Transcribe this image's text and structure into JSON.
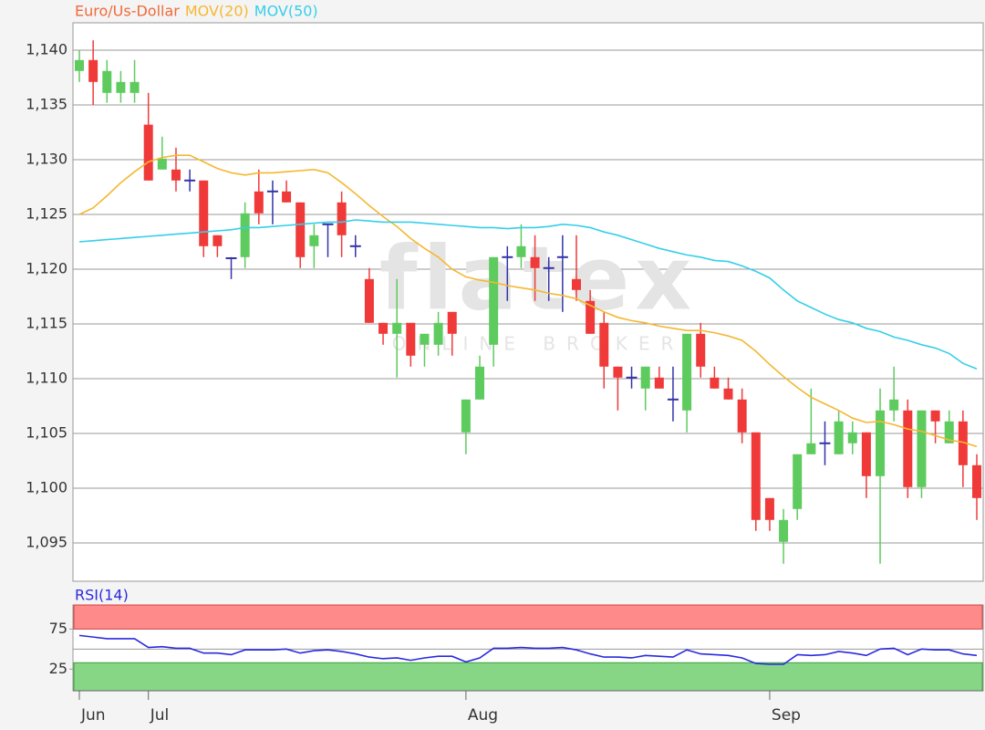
{
  "chart_data": [
    {
      "type": "candlestick",
      "name": "Euro/Us-Dollar",
      "up_color": "#5ecb5e",
      "down_color": "#f03a3a",
      "flat_color": "#3333aa",
      "name_color": "#f06a3a",
      "open": [
        1.1381,
        1.1391,
        1.1361,
        1.1361,
        1.1361,
        1.1332,
        1.1291,
        1.1291,
        1.1281,
        1.1281,
        1.1231,
        1.121,
        1.1211,
        1.1271,
        1.1271,
        1.1271,
        1.1261,
        1.1221,
        1.1241,
        1.1261,
        1.1221,
        1.1191,
        1.1151,
        1.1141,
        1.1151,
        1.1131,
        1.1131,
        1.1161,
        1.1051,
        1.1081,
        1.1131,
        1.1211,
        1.1211,
        1.1211,
        1.1201,
        1.1211,
        1.1191,
        1.1171,
        1.1151,
        1.1111,
        1.1101,
        1.1091,
        1.1101,
        1.1081,
        1.1071,
        1.1141,
        1.1101,
        1.1091,
        1.1081,
        1.1051,
        1.0991,
        1.0951,
        1.0981,
        1.1031,
        1.1041,
        1.1031,
        1.1041,
        1.1051,
        1.1011,
        1.1071,
        1.1071,
        1.1001,
        1.1071,
        1.1041,
        1.1061,
        1.1021
      ],
      "high": [
        1.14,
        1.1409,
        1.1391,
        1.1381,
        1.1391,
        1.1361,
        1.1321,
        1.1311,
        1.1291,
        1.1281,
        1.1231,
        1.1211,
        1.1261,
        1.1291,
        1.1281,
        1.1281,
        1.1261,
        1.1241,
        1.1241,
        1.1271,
        1.1231,
        1.1201,
        1.1151,
        1.1191,
        1.1151,
        1.1141,
        1.1161,
        1.1161,
        1.1081,
        1.1121,
        1.1211,
        1.1221,
        1.1241,
        1.1231,
        1.1211,
        1.1231,
        1.1231,
        1.1181,
        1.1161,
        1.1111,
        1.1111,
        1.1111,
        1.1111,
        1.1111,
        1.1141,
        1.1151,
        1.1111,
        1.1101,
        1.1091,
        1.1051,
        1.0991,
        1.0981,
        1.1031,
        1.1091,
        1.1061,
        1.1071,
        1.1061,
        1.1051,
        1.1091,
        1.1111,
        1.1081,
        1.1071,
        1.1071,
        1.1071,
        1.1071,
        1.1031
      ],
      "low": [
        1.1371,
        1.135,
        1.1352,
        1.1352,
        1.1352,
        1.1281,
        1.1291,
        1.1271,
        1.1271,
        1.1211,
        1.1211,
        1.1191,
        1.1201,
        1.1241,
        1.1241,
        1.1261,
        1.1201,
        1.1201,
        1.1211,
        1.1211,
        1.1211,
        1.1151,
        1.1131,
        1.1101,
        1.1111,
        1.1111,
        1.1121,
        1.1121,
        1.1031,
        1.1081,
        1.1111,
        1.1171,
        1.1201,
        1.1171,
        1.1171,
        1.1161,
        1.1171,
        1.1141,
        1.1091,
        1.1071,
        1.1091,
        1.1071,
        1.1091,
        1.1061,
        1.1051,
        1.1101,
        1.1091,
        1.1081,
        1.1041,
        1.0961,
        1.0961,
        1.0931,
        1.0971,
        1.1031,
        1.1021,
        1.1031,
        1.1031,
        1.0991,
        1.0931,
        1.1061,
        1.0991,
        1.0991,
        1.1041,
        1.1041,
        1.1001,
        1.0971
      ],
      "close": [
        1.1391,
        1.1371,
        1.1381,
        1.1371,
        1.1371,
        1.1281,
        1.1301,
        1.1281,
        1.1281,
        1.1221,
        1.1221,
        1.121,
        1.1251,
        1.1251,
        1.1271,
        1.1261,
        1.1211,
        1.1231,
        1.1241,
        1.1231,
        1.1221,
        1.1151,
        1.1141,
        1.1151,
        1.1121,
        1.1141,
        1.1151,
        1.1141,
        1.1081,
        1.1111,
        1.1211,
        1.1211,
        1.1221,
        1.1201,
        1.1201,
        1.1211,
        1.1181,
        1.1141,
        1.1111,
        1.1101,
        1.1101,
        1.1111,
        1.1091,
        1.1081,
        1.1141,
        1.1111,
        1.1091,
        1.1081,
        1.1051,
        1.0971,
        1.0971,
        1.0971,
        1.1031,
        1.1041,
        1.1041,
        1.1061,
        1.1051,
        1.1011,
        1.1071,
        1.1081,
        1.1001,
        1.1071,
        1.1061,
        1.1061,
        1.1021,
        1.0991
      ],
      "series": [
        {
          "name": "MOV(20)",
          "color": "#f5b731",
          "values": [
            1.125,
            1.1256,
            1.1267,
            1.1279,
            1.1289,
            1.1298,
            1.1302,
            1.1304,
            1.1304,
            1.1298,
            1.1292,
            1.1288,
            1.1286,
            1.1288,
            1.1288,
            1.1289,
            1.129,
            1.1291,
            1.1288,
            1.1279,
            1.1269,
            1.1258,
            1.1248,
            1.1239,
            1.1228,
            1.1219,
            1.1211,
            1.12,
            1.1193,
            1.119,
            1.1188,
            1.1185,
            1.1183,
            1.1181,
            1.1178,
            1.1176,
            1.1173,
            1.1167,
            1.1161,
            1.1156,
            1.1153,
            1.1151,
            1.1148,
            1.1146,
            1.1144,
            1.1144,
            1.1142,
            1.1139,
            1.1135,
            1.1125,
            1.1113,
            1.1102,
            1.1092,
            1.1083,
            1.1077,
            1.1071,
            1.1064,
            1.106,
            1.1061,
            1.1058,
            1.1054,
            1.1052,
            1.1048,
            1.1044,
            1.1042,
            1.1038
          ]
        },
        {
          "name": "MOV(50)",
          "color": "#35cfe8",
          "values": [
            1.1225,
            1.1226,
            1.1227,
            1.1228,
            1.1229,
            1.123,
            1.1231,
            1.1232,
            1.1233,
            1.1234,
            1.1235,
            1.1236,
            1.1238,
            1.1238,
            1.1239,
            1.124,
            1.1241,
            1.1242,
            1.1243,
            1.1243,
            1.1245,
            1.1244,
            1.1243,
            1.1243,
            1.1243,
            1.1242,
            1.1241,
            1.124,
            1.1239,
            1.1238,
            1.1238,
            1.1237,
            1.1238,
            1.1238,
            1.1239,
            1.1241,
            1.124,
            1.1238,
            1.1234,
            1.1231,
            1.1227,
            1.1223,
            1.1219,
            1.1216,
            1.1213,
            1.1211,
            1.1208,
            1.1207,
            1.1203,
            1.1198,
            1.1192,
            1.1181,
            1.1171,
            1.1165,
            1.1159,
            1.1154,
            1.1151,
            1.1146,
            1.1143,
            1.1138,
            1.1135,
            1.1131,
            1.1128,
            1.1123,
            1.1114,
            1.1109
          ]
        }
      ],
      "ylim": [
        1.0915,
        1.1425
      ],
      "yticks": [
        {
          "value": 1.095,
          "label": "1,095"
        },
        {
          "value": 1.1,
          "label": "1,100"
        },
        {
          "value": 1.105,
          "label": "1,105"
        },
        {
          "value": 1.11,
          "label": "1,110"
        },
        {
          "value": 1.115,
          "label": "1,115"
        },
        {
          "value": 1.12,
          "label": "1,120"
        },
        {
          "value": 1.125,
          "label": "1,125"
        },
        {
          "value": 1.13,
          "label": "1,130"
        },
        {
          "value": 1.135,
          "label": "1,135"
        },
        {
          "value": 1.14,
          "label": "1,140"
        }
      ],
      "grid": true,
      "watermark": {
        "logo": "flatex",
        "tagline": "ONLINE BROKER"
      }
    },
    {
      "type": "line",
      "series": [
        {
          "name": "RSI(14)",
          "color": "#2a2ae0",
          "values": [
            67,
            65,
            63,
            63,
            63,
            52,
            53,
            51,
            51,
            45,
            45,
            43,
            49,
            49,
            49,
            50,
            45,
            48,
            49,
            47,
            44,
            40,
            38,
            39,
            36,
            39,
            41,
            41,
            34,
            39,
            51,
            51,
            52,
            51,
            51,
            52,
            49,
            44,
            40,
            40,
            39,
            42,
            41,
            40,
            49,
            44,
            43,
            42,
            39,
            32,
            31,
            31,
            43,
            42,
            43,
            47,
            45,
            42,
            50,
            51,
            43,
            50,
            49,
            49,
            44,
            42
          ]
        }
      ],
      "categories": [
        "Jun",
        null,
        null,
        null,
        null,
        "Jul",
        null,
        null,
        null,
        null,
        null,
        null,
        null,
        null,
        null,
        null,
        null,
        null,
        null,
        null,
        null,
        null,
        null,
        null,
        null,
        null,
        null,
        null,
        "Aug",
        null,
        null,
        null,
        null,
        null,
        null,
        null,
        null,
        null,
        null,
        null,
        null,
        null,
        null,
        null,
        null,
        null,
        null,
        null,
        null,
        null,
        "Sep",
        null,
        null,
        null,
        null,
        null,
        null,
        null,
        null,
        null,
        null,
        null,
        null,
        null,
        null,
        null
      ],
      "ylim": [
        -2,
        105
      ],
      "yticks": [
        25,
        75
      ],
      "reference_lines": [
        50
      ],
      "bands": [
        {
          "from": 75,
          "color": "#ff8a8a",
          "edge": "#d04040"
        },
        {
          "to": 33,
          "color": "#86d686",
          "edge": "#3f9f3f"
        }
      ]
    }
  ]
}
